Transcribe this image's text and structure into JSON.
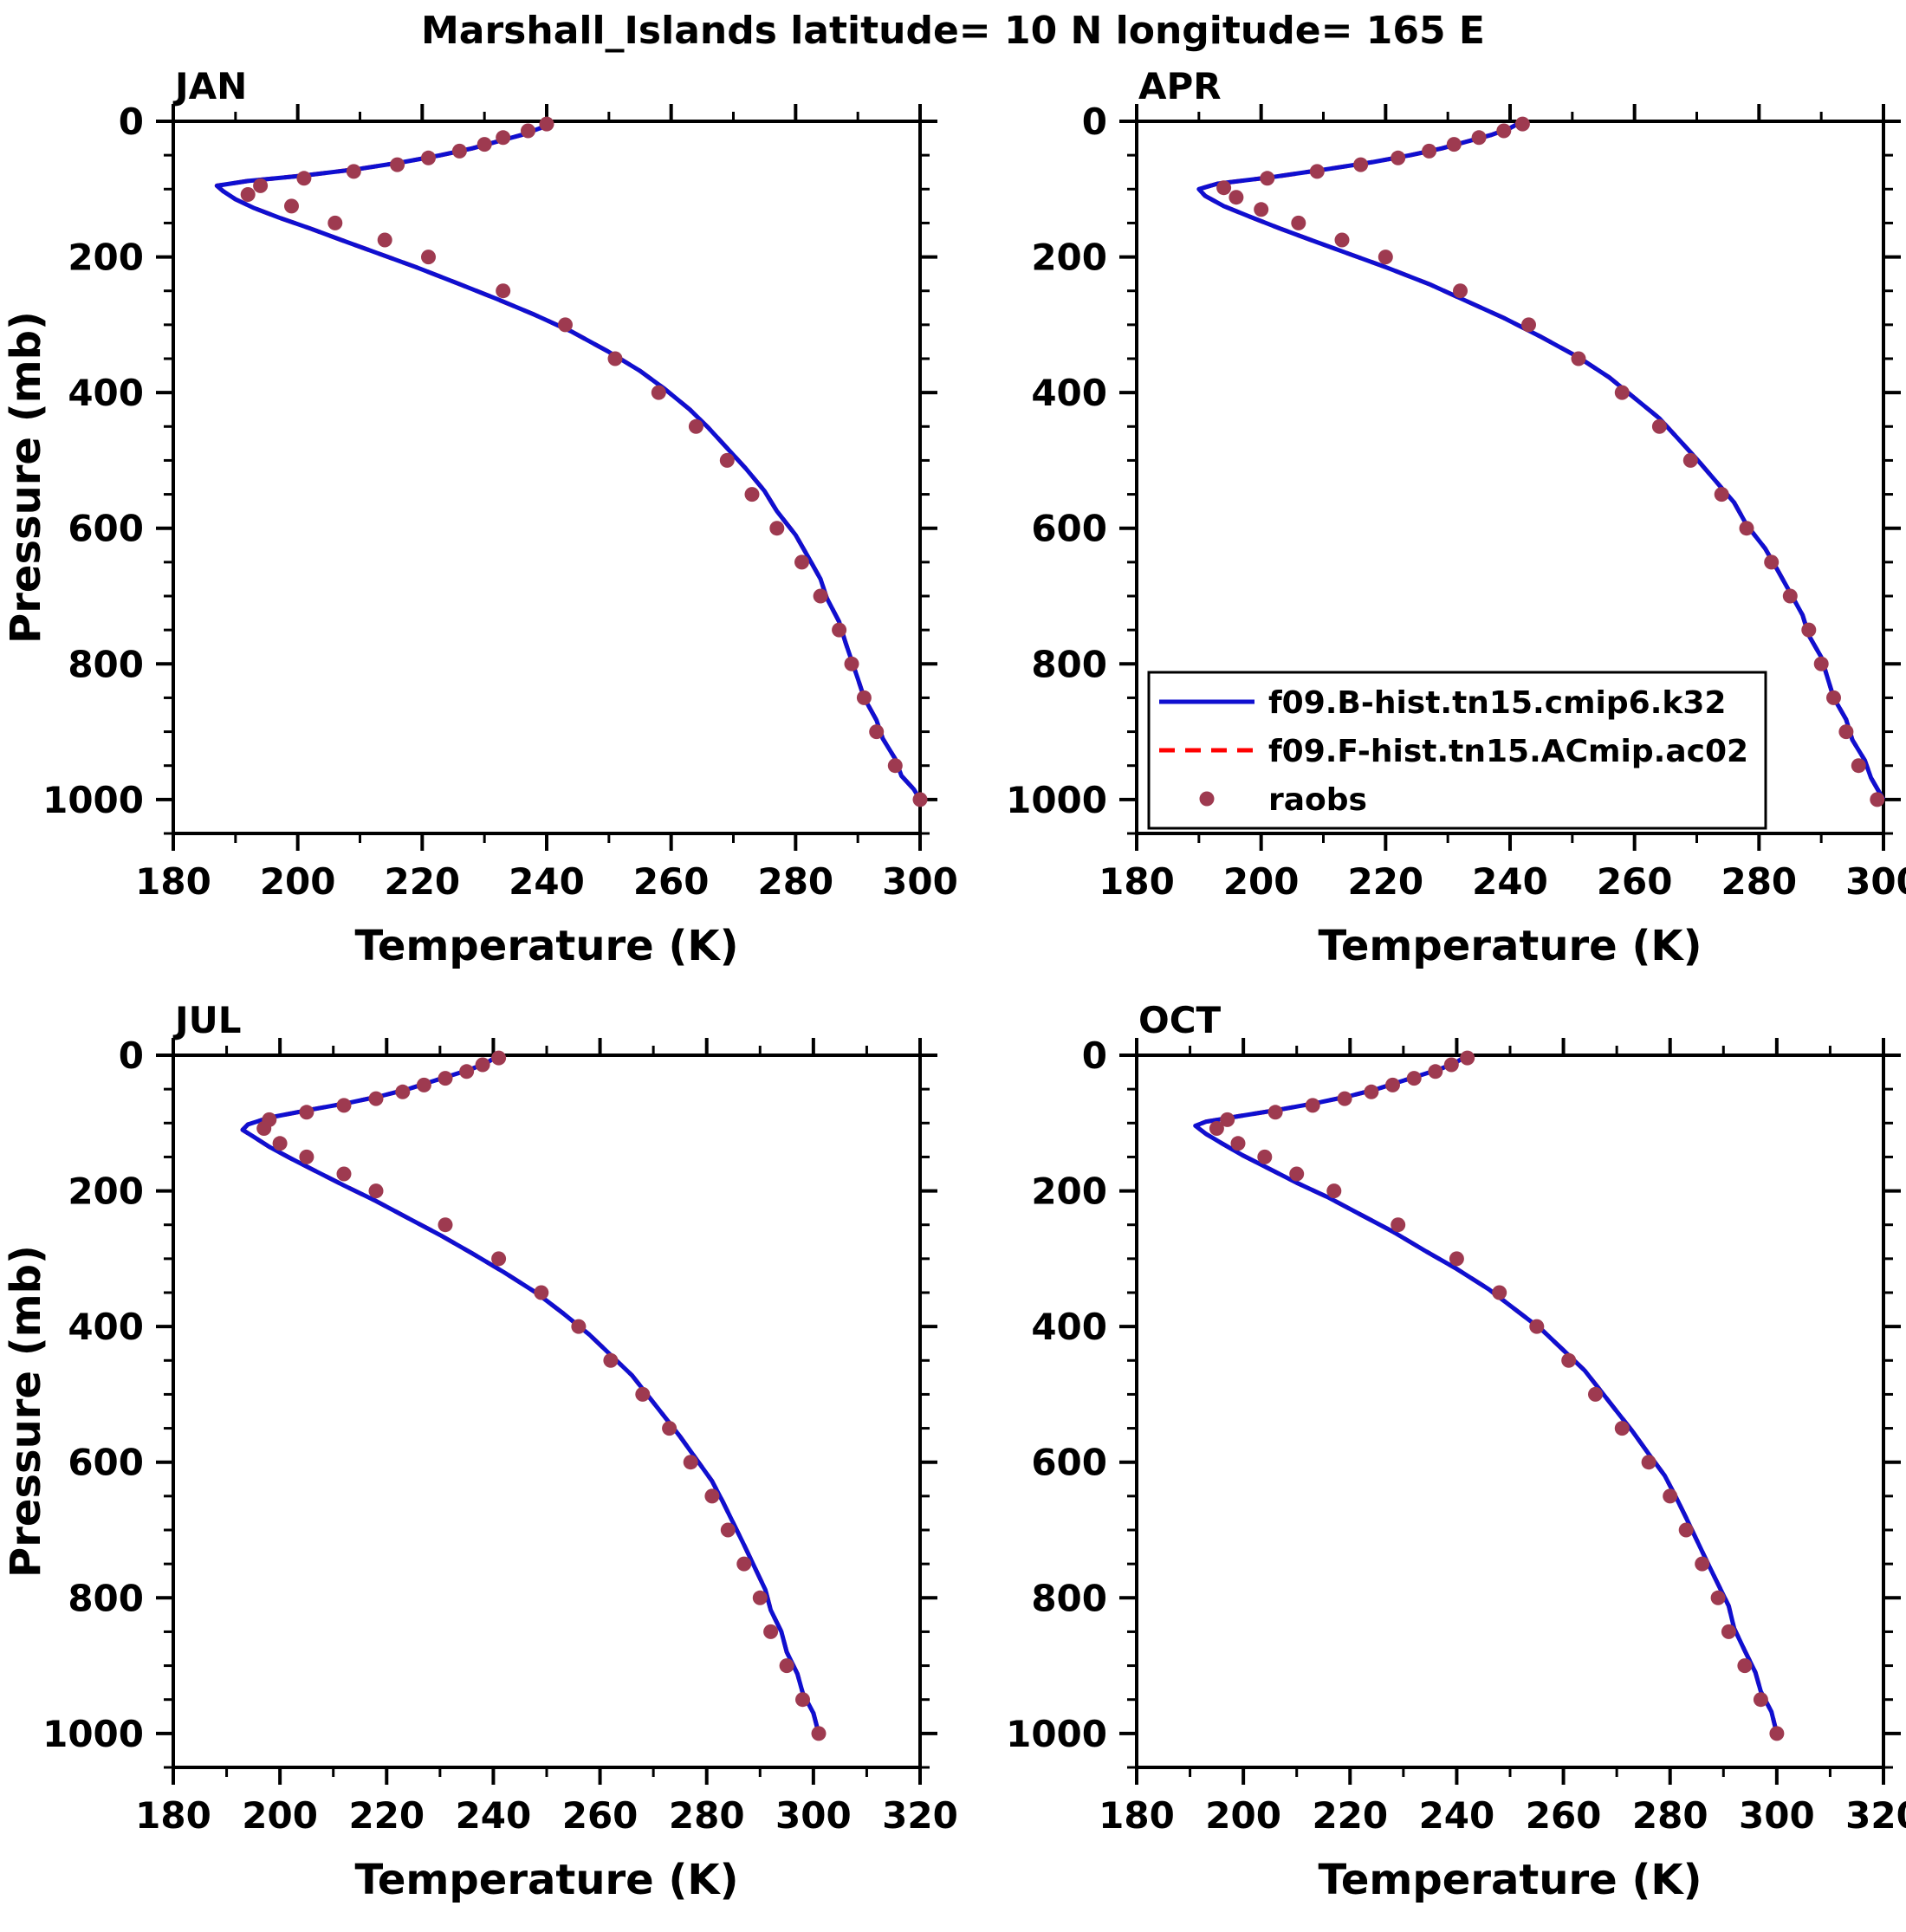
{
  "title": "Marshall_Islands  latitude= 10 N longitude= 165 E",
  "layout": {
    "grid": "2x2",
    "panel_order": [
      "JAN",
      "APR",
      "JUL",
      "OCT"
    ],
    "legend_position": "inside lower-left of APR panel",
    "grid_lines": "off",
    "y_axis_inverted_pressure": true
  },
  "colors": {
    "model_b_line": "#0f0fd0",
    "model_f_line": "#ff0000",
    "raobs_dot": "#9e3a50",
    "axis": "#000000",
    "background": "#ffffff"
  },
  "legend": {
    "panel": "APR",
    "entries": [
      {
        "label": "f09.B-hist.tn15.cmip6.k32",
        "swatch": "solid-line",
        "color": "#0f0fd0"
      },
      {
        "label": "f09.F-hist.tn15.ACmip.ac02",
        "swatch": "dashed-line",
        "color": "#ff0000"
      },
      {
        "label": "raobs",
        "swatch": "dot",
        "color": "#9e3a50"
      }
    ]
  },
  "chart_data": [
    {
      "type": "line",
      "title": "JAN",
      "xlabel": "Temperature (K)",
      "ylabel": "Pressure (mb)",
      "xlim": [
        180,
        300
      ],
      "xticks": [
        180,
        200,
        220,
        240,
        260,
        280,
        300
      ],
      "xminor_step": 10,
      "ylim": [
        0,
        1050
      ],
      "yticks": [
        0,
        200,
        400,
        600,
        800,
        1000
      ],
      "yminor_step": 50,
      "series": [
        {
          "name": "f09.B-hist.tn15.cmip6.k32",
          "type": "line",
          "style": "solid",
          "color": "#0f0fd0",
          "pressure": [
            0,
            10,
            20,
            30,
            40,
            50,
            60,
            70,
            80,
            88,
            95,
            103,
            115,
            128,
            142,
            158,
            175,
            195,
            215,
            240,
            262,
            285,
            310,
            340,
            368,
            395,
            425,
            452,
            482,
            512,
            545,
            575,
            610,
            642,
            675,
            703,
            738,
            768,
            795,
            822,
            850,
            883,
            910,
            940,
            965,
            985,
            1000
          ],
          "temp": [
            241,
            239,
            236,
            232,
            228,
            223,
            217,
            210,
            201,
            192,
            187,
            188,
            190,
            193,
            197,
            202,
            207,
            213,
            219,
            226,
            232,
            238,
            244,
            250,
            255,
            259,
            263,
            266,
            269,
            272,
            275,
            277,
            280,
            282,
            284,
            285,
            287,
            288,
            289,
            290,
            291,
            293,
            294,
            296,
            297,
            299,
            300
          ]
        },
        {
          "name": "f09.F-hist.tn15.ACmip.ac02",
          "type": "line",
          "style": "dashed",
          "color": "#ff0000",
          "coincident_with": "f09.B-hist.tn15.cmip6.k32"
        },
        {
          "name": "raobs",
          "type": "points",
          "color": "#9e3a50",
          "pressure": [
            4,
            14,
            24,
            34,
            44,
            54,
            64,
            74,
            84,
            95,
            108,
            125,
            150,
            175,
            200,
            250,
            300,
            350,
            400,
            450,
            500,
            550,
            600,
            650,
            700,
            750,
            800,
            850,
            900,
            950,
            1000
          ],
          "temp": [
            240,
            237,
            233,
            230,
            226,
            221,
            216,
            209,
            201,
            194,
            192,
            199,
            206,
            214,
            221,
            233,
            243,
            251,
            258,
            264,
            269,
            273,
            277,
            281,
            284,
            287,
            289,
            291,
            293,
            296,
            300
          ]
        }
      ]
    },
    {
      "type": "line",
      "title": "APR",
      "xlabel": "Temperature (K)",
      "ylabel": "Pressure (mb)",
      "xlim": [
        180,
        300
      ],
      "xticks": [
        180,
        200,
        220,
        240,
        260,
        280,
        300
      ],
      "xminor_step": 10,
      "ylim": [
        0,
        1050
      ],
      "yticks": [
        0,
        200,
        400,
        600,
        800,
        1000
      ],
      "yminor_step": 50,
      "series": [
        {
          "name": "f09.B-hist.tn15.cmip6.k32",
          "type": "line",
          "style": "solid",
          "color": "#0f0fd0",
          "pressure": [
            0,
            10,
            20,
            30,
            40,
            50,
            60,
            70,
            82,
            92,
            100,
            110,
            125,
            140,
            158,
            175,
            195,
            215,
            240,
            265,
            290,
            318,
            348,
            378,
            408,
            438,
            468,
            498,
            530,
            562,
            595,
            630,
            662,
            695,
            728,
            758,
            790,
            820,
            850,
            882,
            912,
            942,
            968,
            1000
          ],
          "temp": [
            242,
            240,
            237,
            233,
            229,
            224,
            218,
            211,
            202,
            193,
            190,
            191,
            194,
            198,
            203,
            208,
            214,
            220,
            227,
            233,
            239,
            245,
            251,
            256,
            260,
            264,
            267,
            270,
            273,
            276,
            278,
            281,
            283,
            285,
            287,
            288,
            290,
            291,
            292,
            294,
            295,
            297,
            298,
            300
          ]
        },
        {
          "name": "f09.F-hist.tn15.ACmip.ac02",
          "type": "line",
          "style": "dashed",
          "color": "#ff0000",
          "coincident_with": "f09.B-hist.tn15.cmip6.k32"
        },
        {
          "name": "raobs",
          "type": "points",
          "color": "#9e3a50",
          "pressure": [
            4,
            14,
            24,
            34,
            44,
            54,
            64,
            74,
            84,
            98,
            112,
            130,
            150,
            175,
            200,
            250,
            300,
            350,
            400,
            450,
            500,
            550,
            600,
            650,
            700,
            750,
            800,
            850,
            900,
            950,
            1000
          ],
          "temp": [
            242,
            239,
            235,
            231,
            227,
            222,
            216,
            209,
            201,
            194,
            196,
            200,
            206,
            213,
            220,
            232,
            243,
            251,
            258,
            264,
            269,
            274,
            278,
            282,
            285,
            288,
            290,
            292,
            294,
            296,
            299
          ]
        }
      ]
    },
    {
      "type": "line",
      "title": "JUL",
      "xlabel": "Temperature (K)",
      "ylabel": "Pressure (mb)",
      "xlim": [
        180,
        320
      ],
      "xticks": [
        180,
        200,
        220,
        240,
        260,
        280,
        300,
        320
      ],
      "xminor_step": 10,
      "ylim": [
        0,
        1050
      ],
      "yticks": [
        0,
        200,
        400,
        600,
        800,
        1000
      ],
      "yminor_step": 50,
      "series": [
        {
          "name": "f09.B-hist.tn15.cmip6.k32",
          "type": "line",
          "style": "solid",
          "color": "#0f0fd0",
          "pressure": [
            0,
            10,
            20,
            30,
            40,
            50,
            60,
            70,
            80,
            92,
            102,
            110,
            120,
            135,
            152,
            172,
            192,
            215,
            240,
            265,
            292,
            320,
            350,
            380,
            412,
            442,
            472,
            502,
            532,
            562,
            595,
            628,
            658,
            690,
            722,
            755,
            788,
            818,
            850,
            880,
            912,
            940,
            970,
            1000
          ],
          "temp": [
            241,
            239,
            236,
            232,
            228,
            224,
            219,
            213,
            206,
            198,
            194,
            193,
            195,
            198,
            202,
            207,
            212,
            218,
            224,
            230,
            236,
            242,
            248,
            253,
            258,
            262,
            266,
            269,
            272,
            275,
            278,
            281,
            283,
            285,
            287,
            289,
            291,
            292,
            294,
            295,
            297,
            298,
            300,
            301
          ]
        },
        {
          "name": "f09.F-hist.tn15.ACmip.ac02",
          "type": "line",
          "style": "dashed",
          "color": "#ff0000",
          "coincident_with": "f09.B-hist.tn15.cmip6.k32"
        },
        {
          "name": "raobs",
          "type": "points",
          "color": "#9e3a50",
          "pressure": [
            4,
            14,
            24,
            34,
            44,
            54,
            64,
            74,
            84,
            95,
            108,
            130,
            150,
            175,
            200,
            250,
            300,
            350,
            400,
            450,
            500,
            550,
            600,
            650,
            700,
            750,
            800,
            850,
            900,
            950,
            1000
          ],
          "temp": [
            241,
            238,
            235,
            231,
            227,
            223,
            218,
            212,
            205,
            198,
            197,
            200,
            205,
            212,
            218,
            231,
            241,
            249,
            256,
            262,
            268,
            273,
            277,
            281,
            284,
            287,
            290,
            292,
            295,
            298,
            301
          ]
        }
      ]
    },
    {
      "type": "line",
      "title": "OCT",
      "xlabel": "Temperature (K)",
      "ylabel": "Pressure (mb)",
      "xlim": [
        180,
        320
      ],
      "xticks": [
        180,
        200,
        220,
        240,
        260,
        280,
        300,
        320
      ],
      "xminor_step": 10,
      "ylim": [
        0,
        1050
      ],
      "yticks": [
        0,
        200,
        400,
        600,
        800,
        1000
      ],
      "yminor_step": 50,
      "series": [
        {
          "name": "f09.B-hist.tn15.cmip6.k32",
          "type": "line",
          "style": "solid",
          "color": "#0f0fd0",
          "pressure": [
            0,
            10,
            20,
            30,
            40,
            50,
            60,
            70,
            80,
            90,
            98,
            104,
            116,
            130,
            148,
            168,
            188,
            210,
            235,
            260,
            288,
            315,
            345,
            375,
            405,
            435,
            465,
            495,
            525,
            555,
            588,
            620,
            650,
            682,
            715,
            748,
            780,
            812,
            845,
            878,
            910,
            938,
            968,
            1000
          ],
          "temp": [
            242,
            240,
            237,
            233,
            229,
            225,
            220,
            214,
            207,
            199,
            193,
            191,
            193,
            196,
            200,
            205,
            210,
            216,
            222,
            228,
            234,
            240,
            246,
            251,
            256,
            260,
            264,
            267,
            270,
            273,
            276,
            279,
            281,
            283,
            285,
            287,
            289,
            291,
            292,
            294,
            296,
            297,
            299,
            300
          ]
        },
        {
          "name": "f09.F-hist.tn15.ACmip.ac02",
          "type": "line",
          "style": "dashed",
          "color": "#ff0000",
          "coincident_with": "f09.B-hist.tn15.cmip6.k32"
        },
        {
          "name": "raobs",
          "type": "points",
          "color": "#9e3a50",
          "pressure": [
            4,
            14,
            24,
            34,
            44,
            54,
            64,
            74,
            84,
            95,
            108,
            130,
            150,
            175,
            200,
            250,
            300,
            350,
            400,
            450,
            500,
            550,
            600,
            650,
            700,
            750,
            800,
            850,
            900,
            950,
            1000
          ],
          "temp": [
            242,
            239,
            236,
            232,
            228,
            224,
            219,
            213,
            206,
            197,
            195,
            199,
            204,
            210,
            217,
            229,
            240,
            248,
            255,
            261,
            266,
            271,
            276,
            280,
            283,
            286,
            289,
            291,
            294,
            297,
            300
          ]
        }
      ]
    }
  ]
}
